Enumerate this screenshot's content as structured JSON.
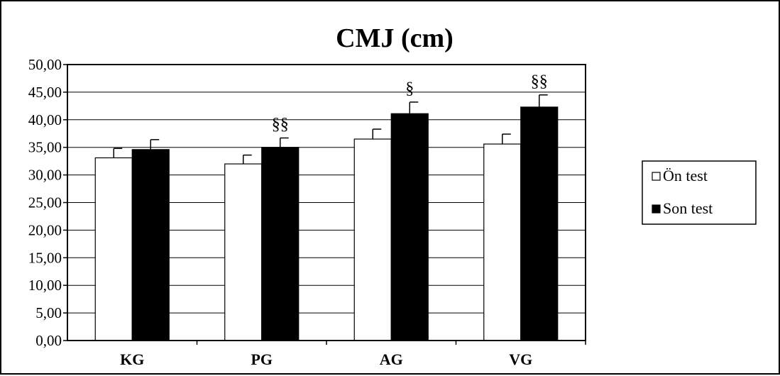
{
  "chart_data": {
    "type": "bar",
    "title": "CMJ (cm)",
    "categories": [
      "KG",
      "PG",
      "AG",
      "VG"
    ],
    "series": [
      {
        "name": "Ön test",
        "values": [
          33.1,
          32.0,
          36.5,
          35.6
        ],
        "errors": [
          1.7,
          1.6,
          1.8,
          1.8
        ],
        "color": "#ffffff"
      },
      {
        "name": "Son test",
        "values": [
          34.6,
          35.0,
          41.1,
          42.3
        ],
        "errors": [
          1.8,
          1.7,
          2.1,
          2.2
        ],
        "color": "#000000"
      }
    ],
    "annotations": [
      "",
      "§§",
      "§",
      "§§"
    ],
    "ylim": [
      0,
      50
    ],
    "ytick_labels": [
      "0,00",
      "5,00",
      "10,00",
      "15,00",
      "20,00",
      "25,00",
      "30,00",
      "35,00",
      "40,00",
      "45,00",
      "50,00"
    ],
    "grid": true,
    "legend_position": "right"
  }
}
